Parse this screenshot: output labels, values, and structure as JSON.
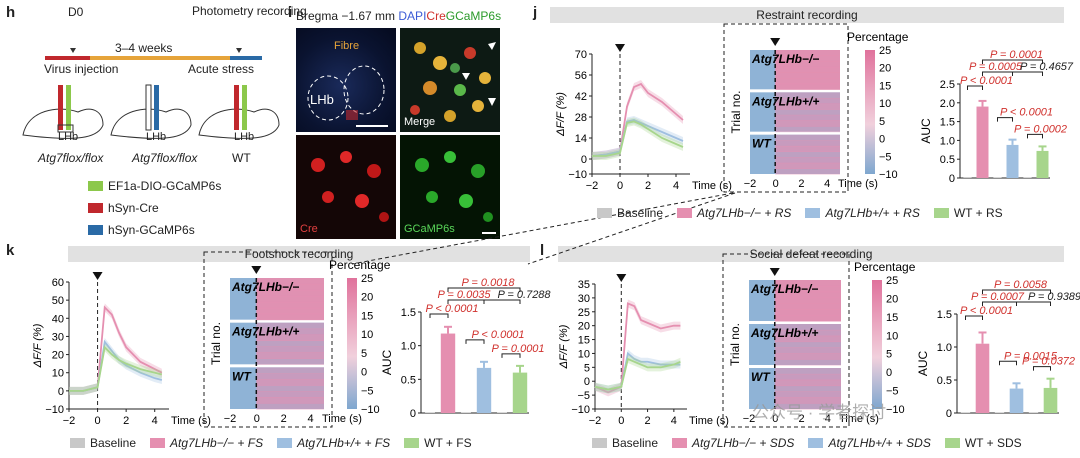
{
  "panels": {
    "h": "h",
    "i": "i",
    "j": "j",
    "k": "k",
    "l": "l"
  },
  "panel_h": {
    "day0": "D0",
    "weeks": "3–4 weeks",
    "photometry": "Photometry recording",
    "virus_injection": "Virus injection",
    "acute_stress": "Acute stress",
    "mouse_labels": [
      "Atg7flox/flox",
      "Atg7flox/flox",
      "WT"
    ],
    "lhb": "LHb",
    "legend": [
      {
        "label": "EF1a-DIO-GCaMP6s",
        "color": "#8cc84b"
      },
      {
        "label": "hSyn-Cre",
        "color": "#c0282d"
      },
      {
        "label": "hSyn-GCaMP6s",
        "color": "#2a6aa6"
      }
    ]
  },
  "panel_i": {
    "bregma": "Bregma −1.67 mm",
    "dapi": "DAPI",
    "cre": "Cre",
    "gcamp": "GCaMP6s",
    "fibre": "Fibre",
    "lhb": "LHb",
    "merge": "Merge",
    "cre_label": "Cre",
    "gcamp_label": "GCaMP6s"
  },
  "colors": {
    "baseline": "#c8c8c8",
    "atg7_ko": "#e58fb0",
    "atg7_wt": "#9fbfe0",
    "wt": "#a7d58c",
    "stat": "#d0312d"
  },
  "common": {
    "heat_scale_label": "Percentage",
    "trial_no": "Trial no.",
    "time_s": "Time (s)",
    "dff": "ΔF/F (%)",
    "auc": "AUC",
    "row_labels": [
      "Atg7LHb−/−",
      "Atg7LHb+/+",
      "WT"
    ],
    "heat_ticks": [
      "25",
      "20",
      "15",
      "10",
      "5",
      "0",
      "−5",
      "−10"
    ]
  },
  "chart_data": [
    {
      "id": "j",
      "title": "Restraint recording",
      "type": "line",
      "x": [
        -2,
        -1,
        0,
        0.5,
        1,
        1.5,
        2,
        3,
        4,
        4.5
      ],
      "xlim": [
        -2,
        5
      ],
      "ylim": [
        -10,
        70
      ],
      "yticks": [
        -10,
        0,
        14,
        28,
        42,
        56,
        70
      ],
      "xticks": [
        -2,
        0,
        2,
        4
      ],
      "series": [
        {
          "name": "Atg7LHb−/− + RS",
          "values": [
            2,
            3,
            5,
            35,
            48,
            50,
            44,
            38,
            30,
            26
          ]
        },
        {
          "name": "Atg7LHb+/+ + RS",
          "values": [
            2,
            3,
            5,
            25,
            26,
            24,
            22,
            18,
            14,
            12
          ]
        },
        {
          "name": "WT + RS",
          "values": [
            2,
            2,
            4,
            24,
            25,
            23,
            20,
            14,
            10,
            8
          ]
        }
      ],
      "bar": {
        "type": "bar",
        "ylabel": "AUC",
        "ylim": [
          0,
          2.5
        ],
        "yticks": [
          0,
          0.5,
          1.0,
          1.5,
          2.0,
          2.5
        ],
        "values": [
          0.01,
          1.9,
          0.02,
          0.88,
          0.02,
          0.72
        ],
        "errors": [
          0,
          0.15,
          0,
          0.14,
          0,
          0.12
        ]
      },
      "stats": [
        "P = 0.0001",
        "P = 0.0005",
        "P = 0.4657",
        "P < 0.0001",
        "P < 0.0001",
        "P = 0.0002"
      ],
      "legend": [
        "Baseline",
        "Atg7LHb−/− + RS",
        "Atg7LHb+/+ + RS",
        "WT + RS"
      ]
    },
    {
      "id": "k",
      "title": "Footshock recording",
      "type": "line",
      "x": [
        -2,
        -1,
        0,
        0.5,
        1,
        1.5,
        2,
        3,
        4,
        4.5
      ],
      "xlim": [
        -2,
        5
      ],
      "ylim": [
        -10,
        60
      ],
      "yticks": [
        -10,
        0,
        10,
        20,
        30,
        40,
        50,
        60
      ],
      "xticks": [
        -2,
        0,
        2,
        4
      ],
      "series": [
        {
          "name": "Atg7LHb−/− + FS",
          "values": [
            0,
            0,
            2,
            46,
            42,
            32,
            24,
            16,
            12,
            10
          ]
        },
        {
          "name": "Atg7LHb+/+ + FS",
          "values": [
            0,
            0,
            2,
            27,
            22,
            17,
            14,
            10,
            7,
            6
          ]
        },
        {
          "name": "WT + FS",
          "values": [
            0,
            0,
            2,
            24,
            20,
            17,
            15,
            12,
            10,
            9
          ]
        }
      ],
      "bar": {
        "type": "bar",
        "ylabel": "AUC",
        "ylim": [
          0,
          1.5
        ],
        "yticks": [
          0,
          0.5,
          1.0,
          1.5
        ],
        "values": [
          0.01,
          1.18,
          0.01,
          0.67,
          0.01,
          0.6
        ],
        "errors": [
          0,
          0.1,
          0,
          0.09,
          0,
          0.1
        ]
      },
      "stats": [
        "P = 0.0018",
        "P = 0.0035",
        "P = 0.7288",
        "P < 0.0001",
        "P < 0.0001",
        "P = 0.0001"
      ],
      "legend": [
        "Baseline",
        "Atg7LHb−/− + FS",
        "Atg7LHb+/+ + FS",
        "WT + FS"
      ]
    },
    {
      "id": "l",
      "title": "Social defeat recording",
      "type": "line",
      "x": [
        -2,
        -1,
        0,
        0.5,
        1,
        1.5,
        2,
        3,
        4,
        4.5
      ],
      "xlim": [
        -2,
        5
      ],
      "ylim": [
        -10,
        35
      ],
      "yticks": [
        -10,
        -5,
        0,
        5,
        10,
        15,
        20,
        25,
        30,
        35
      ],
      "xticks": [
        -2,
        0,
        2,
        4
      ],
      "series": [
        {
          "name": "Atg7LHb−/− + SDS",
          "values": [
            -2,
            -4,
            -2,
            28,
            27,
            22,
            21,
            19,
            20,
            20
          ]
        },
        {
          "name": "Atg7LHb+/+ + SDS",
          "values": [
            -2,
            -3,
            -2,
            10,
            8,
            7,
            7,
            6,
            6,
            6
          ]
        },
        {
          "name": "WT + SDS",
          "values": [
            -2,
            -3,
            -2,
            8,
            7,
            6,
            5,
            5,
            6,
            7
          ]
        }
      ],
      "bar": {
        "type": "bar",
        "ylabel": "AUC",
        "ylim": [
          0,
          1.5
        ],
        "yticks": [
          0,
          0.5,
          1.0,
          1.5
        ],
        "values": [
          0.01,
          1.05,
          0.01,
          0.37,
          0.01,
          0.38
        ],
        "errors": [
          0,
          0.17,
          0,
          0.08,
          0,
          0.14
        ]
      },
      "stats": [
        "P = 0.0058",
        "P = 0.0007",
        "P = 0.9389",
        "P < 0.0001",
        "P = 0.0015",
        "P = 0.0372"
      ],
      "legend": [
        "Baseline",
        "Atg7LHb−/− + SDS",
        "Atg7LHb+/+ + SDS",
        "WT + SDS"
      ]
    }
  ],
  "watermark": "公众号 · 学者探讨"
}
